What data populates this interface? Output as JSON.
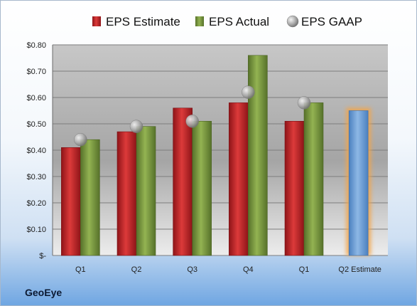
{
  "company": "GeoEye",
  "chart_data": {
    "type": "bar",
    "categories": [
      "Q1",
      "Q2",
      "Q3",
      "Q4",
      "Q1",
      "Q2 Estimate"
    ],
    "series": [
      {
        "name": "EPS Estimate",
        "values": [
          0.41,
          0.47,
          0.56,
          0.58,
          0.51,
          null
        ]
      },
      {
        "name": "EPS Actual",
        "values": [
          0.44,
          0.49,
          0.51,
          0.76,
          0.58,
          0.55
        ]
      },
      {
        "name": "EPS GAAP",
        "values": [
          0.44,
          0.49,
          0.51,
          0.62,
          0.58,
          null
        ]
      }
    ],
    "highlight": {
      "category_index": 5,
      "series": "EPS Actual",
      "note": "estimate bar shown in blue with orange glow"
    },
    "ylim": [
      0,
      0.8
    ],
    "yticks": [
      0,
      0.1,
      0.2,
      0.3,
      0.4,
      0.5,
      0.6,
      0.7,
      0.8
    ],
    "ytick_labels": [
      "$-",
      "$0.10",
      "$0.20",
      "$0.30",
      "$0.40",
      "$0.50",
      "$0.60",
      "$0.70",
      "$0.80"
    ],
    "grid": true,
    "legend": "top",
    "colors": {
      "EPS Estimate": "#c0272d",
      "EPS Actual": "#7a9a3b",
      "EPS GAAP": "#a8a8a8",
      "estimate_bar": "#6d9fd6",
      "estimate_glow": "#f3a54a"
    }
  }
}
